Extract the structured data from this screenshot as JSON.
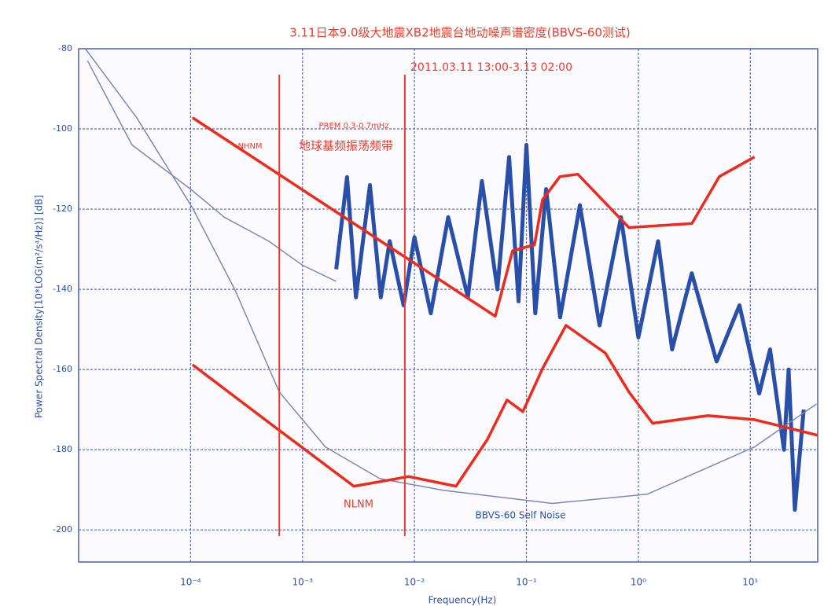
{
  "chart_data": {
    "type": "line",
    "title": "3.11日本9.0级大地震XB2地震台地动噪声谱密度(BBVS-60测试)",
    "xlabel": "Frequency(Hz)",
    "ylabel": "Power Spectral Density[10*LOG(m²/s⁴/Hz)] [dB]",
    "xscale": "log",
    "xlim": [
      1e-05,
      40
    ],
    "ylim": [
      -208,
      -80
    ],
    "xticks": [
      {
        "value": 0.0001,
        "label": "10⁻⁴"
      },
      {
        "value": 0.001,
        "label": "10⁻³"
      },
      {
        "value": 0.01,
        "label": "10⁻²"
      },
      {
        "value": 0.1,
        "label": "10⁻¹"
      },
      {
        "value": 1,
        "label": "10⁰"
      },
      {
        "value": 10,
        "label": "10¹"
      }
    ],
    "yticks": [
      -80,
      -100,
      -120,
      -140,
      -160,
      -180,
      -200
    ],
    "grid": true,
    "vlines": [
      {
        "x": 0.00062,
        "color": "#ee3a2a"
      },
      {
        "x": 0.0082,
        "color": "#ee3a2a"
      }
    ],
    "annotations": [
      "2011.03.11 13:00-3.13 02:00",
      "PREM 0.3-0.7mHz",
      "地球基频振荡频带",
      "NHNM",
      "NLNM",
      "BBVS-60 Self Noise"
    ],
    "series": [
      {
        "color": "#7d86b5",
        "width": 1.5,
        "x": [
          1.2e-05,
          3e-05,
          0.0001,
          0.0002,
          0.0005,
          0.001,
          0.002
        ],
        "values": [
          -83,
          -104,
          -115,
          -122,
          -128,
          -134,
          -138
        ]
      },
      {
        "color": "#2a4fa8",
        "width": 5,
        "x": [
          0.002,
          0.0025,
          0.003,
          0.004,
          0.005,
          0.006,
          0.008,
          0.01,
          0.014,
          0.02,
          0.03,
          0.04,
          0.055,
          0.07,
          0.085,
          0.1,
          0.12,
          0.15,
          0.2,
          0.3,
          0.45,
          0.7,
          1,
          1.5,
          2,
          3,
          5,
          8,
          12,
          15,
          20,
          22,
          25,
          30
        ],
        "values": [
          -135,
          -112,
          -142,
          -114,
          -142,
          -128,
          -144,
          -127,
          -146,
          -122,
          -142,
          -113,
          -140,
          -107,
          -143,
          -104,
          -146,
          -115,
          -147,
          -119,
          -149,
          -122,
          -152,
          -128,
          -155,
          -136,
          -158,
          -144,
          -166,
          -155,
          -180,
          -160,
          -195,
          -170
        ]
      },
      {
        "color": "#7d86b5",
        "width": 1.5,
        "x": [
          1.15e-05,
          3.3e-05,
          0.000104,
          0.00025,
          0.00062,
          0.0016,
          0.0049,
          0.018,
          0.17,
          1.2,
          10.9,
          39
        ],
        "values": [
          -80,
          -97.2,
          -119.7,
          -140.2,
          -165.6,
          -179.3,
          -187.2,
          -190.1,
          -193.4,
          -191.1,
          -179.3,
          -168.6
        ]
      },
      {
        "color": "#ee2a1c",
        "width": 3.5,
        "x": [
          0.000104,
          0.0527,
          0.0752,
          0.118,
          0.139,
          0.199,
          0.288,
          0.824,
          3.01,
          5.28,
          10.9
        ],
        "values": [
          -97.2,
          -146.7,
          -130.4,
          -128.9,
          -117.7,
          -111.9,
          -111.3,
          -124.6,
          -123.6,
          -111.9,
          -107.0
        ]
      },
      {
        "color": "#ee2a1c",
        "width": 3.5,
        "x": [
          0.000104,
          0.00057,
          0.00287,
          0.00889,
          0.0235,
          0.0449,
          0.0671,
          0.0929,
          0.139,
          0.226,
          0.507,
          0.824,
          1.34,
          4.15,
          10.9,
          40
        ],
        "values": [
          -158.8,
          -174.4,
          -189.1,
          -186.7,
          -189.1,
          -177.4,
          -167.6,
          -170.5,
          -159.8,
          -149.0,
          -155.9,
          -165.6,
          -173.4,
          -171.5,
          -172.5,
          -176.4
        ]
      }
    ]
  }
}
